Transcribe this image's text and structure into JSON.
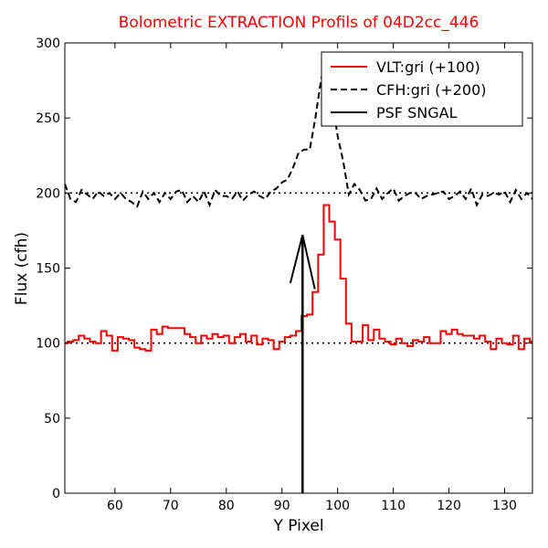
{
  "chart_data": {
    "type": "line",
    "title": "Bolometric EXTRACTION Profils of 04D2cc_446",
    "title_color": "#ff0000",
    "xlabel": "Y Pixel",
    "ylabel": "Flux (cfh)",
    "xlim": [
      51,
      135
    ],
    "ylim": [
      0,
      300
    ],
    "xticks": [
      60,
      70,
      80,
      90,
      100,
      110,
      120,
      130
    ],
    "yticks": [
      0,
      50,
      100,
      150,
      200,
      250,
      300
    ],
    "legend_position": "top-right",
    "reference_lines": [
      {
        "y": 100,
        "style": "dotted",
        "color": "#000000"
      },
      {
        "y": 200,
        "style": "dotted",
        "color": "#000000"
      }
    ],
    "vertical_marker": {
      "x": 93.7,
      "y0": 0,
      "y1": 172,
      "color": "#000000"
    },
    "series": [
      {
        "name": "VLT:gri (+100)",
        "color": "#ff0000",
        "style": "steps",
        "x0": 51,
        "step": 1,
        "values": [
          100,
          101,
          102,
          105,
          103,
          101,
          100,
          108,
          105,
          95,
          104,
          103,
          102,
          97,
          96,
          95,
          109,
          106,
          111,
          110,
          110,
          110,
          106,
          104,
          100,
          105,
          103,
          106,
          104,
          105,
          100,
          104,
          106,
          101,
          105,
          99,
          103,
          102,
          96,
          101,
          104,
          105,
          108,
          118,
          119,
          134,
          159,
          192,
          181,
          169,
          143,
          113,
          101,
          101,
          112,
          102,
          109,
          103,
          101,
          99,
          103,
          100,
          98,
          102,
          101,
          104,
          100,
          100,
          108,
          106,
          109,
          106,
          105,
          105,
          103,
          105,
          101,
          96,
          103,
          100,
          99,
          105,
          96,
          103,
          101,
          100,
          98
        ]
      },
      {
        "name": "CFH:gri (+200)",
        "color": "#000000",
        "style": "dashed",
        "x0": 51,
        "step": 1,
        "values": [
          206,
          196,
          194,
          202,
          199,
          196,
          201,
          198,
          200,
          196,
          200,
          196,
          194,
          191,
          201,
          196,
          200,
          194,
          200,
          196,
          201,
          202,
          194,
          198,
          194,
          201,
          192,
          202,
          198,
          198,
          196,
          201,
          195,
          199,
          201,
          198,
          196,
          201,
          203,
          207,
          209,
          217,
          227,
          229,
          229,
          250,
          275,
          291,
          262,
          238,
          221,
          199,
          206,
          202,
          195,
          196,
          203,
          196,
          200,
          203,
          195,
          198,
          200,
          200,
          196,
          198,
          199,
          200,
          201,
          196,
          198,
          201,
          196,
          203,
          192,
          199,
          198,
          200,
          199,
          201,
          194,
          202,
          196,
          200,
          196,
          194,
          195
        ]
      },
      {
        "name": "PSF SNGAL",
        "color": "#000000",
        "style": "solid",
        "x": [
          91.5,
          93.7,
          95.9
        ],
        "values": [
          140,
          172,
          136
        ]
      }
    ]
  }
}
